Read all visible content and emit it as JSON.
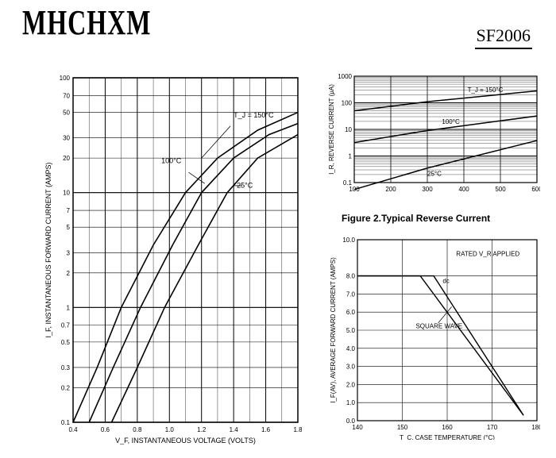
{
  "header": {
    "logo": "MHCHXM",
    "part": "SF2006"
  },
  "figure1": {
    "type": "line",
    "xlabel": "V_F, INSTANTANEOUS VOLTAGE (VOLTS)",
    "ylabel": "I_F, INSTANTANEOUS FORWARD CURRENT (AMPS)",
    "xlim": [
      0.4,
      1.8
    ],
    "xticks": [
      0.4,
      0.6,
      0.8,
      1.0,
      1.2,
      1.4,
      1.6,
      1.8
    ],
    "yscale": "log",
    "ylim": [
      0.1,
      100
    ],
    "yticks": [
      0.1,
      0.2,
      0.3,
      0.5,
      0.7,
      1.0,
      2.0,
      3.0,
      5.0,
      7.0,
      10,
      20,
      30,
      50,
      70,
      100
    ],
    "grid_color": "#000000",
    "background_color": "#ffffff",
    "label_fontsize": 9,
    "tick_fontsize": 8,
    "curve_labels": {
      "c150": "T_J = 150°C",
      "c100": "100°C",
      "c25": "25°C"
    },
    "series": {
      "c150": [
        [
          0.4,
          0.1
        ],
        [
          0.55,
          0.3
        ],
        [
          0.7,
          1.0
        ],
        [
          0.9,
          3.5
        ],
        [
          1.1,
          10
        ],
        [
          1.3,
          20
        ],
        [
          1.55,
          35
        ],
        [
          1.8,
          50
        ]
      ],
      "c100": [
        [
          0.5,
          0.1
        ],
        [
          0.65,
          0.3
        ],
        [
          0.82,
          1.0
        ],
        [
          1.02,
          3.5
        ],
        [
          1.2,
          10
        ],
        [
          1.4,
          20
        ],
        [
          1.62,
          32
        ],
        [
          1.8,
          40
        ]
      ],
      "c25": [
        [
          0.64,
          0.1
        ],
        [
          0.8,
          0.3
        ],
        [
          0.97,
          1.0
        ],
        [
          1.18,
          3.5
        ],
        [
          1.36,
          10
        ],
        [
          1.55,
          20
        ],
        [
          1.8,
          32
        ]
      ]
    },
    "line_color": "#000000",
    "line_width": 1.6
  },
  "figure2": {
    "type": "line",
    "caption": "Figure 2.Typical  Reverse  Current",
    "xlabel": "",
    "ylabel": "I_R, REVERSE CURRENT (μA)",
    "xlim": [
      100,
      600
    ],
    "xticks": [
      100,
      200,
      300,
      400,
      500,
      600
    ],
    "yscale": "log",
    "ylim": [
      0.1,
      1000
    ],
    "yticks_major": [
      0.1,
      1.0,
      10,
      100,
      1000
    ],
    "grid_color": "#000000",
    "background_color": "#ffffff",
    "tick_fontsize": 8,
    "label_fontsize": 8,
    "curve_labels": {
      "c150": "T_J = 150°C",
      "c100": "100°C",
      "c25": "25°C"
    },
    "series": {
      "c150": [
        [
          100,
          50
        ],
        [
          300,
          110
        ],
        [
          600,
          280
        ]
      ],
      "c100": [
        [
          100,
          3.2
        ],
        [
          300,
          9
        ],
        [
          600,
          32
        ]
      ],
      "c25": [
        [
          100,
          0.055
        ],
        [
          300,
          0.35
        ],
        [
          600,
          3.8
        ]
      ]
    },
    "line_color": "#000000",
    "line_width": 1.5
  },
  "figure3": {
    "type": "line",
    "xlabel": "T_C, CASE TEMPERATURE (°C)",
    "ylabel": "I_F(AV), AVERAGE FORWARD CURRENT (AMPS)",
    "xlim": [
      140,
      180
    ],
    "xticks": [
      140,
      150,
      160,
      170,
      180
    ],
    "ylim": [
      0,
      10
    ],
    "yticks": [
      0,
      1.0,
      2.0,
      3.0,
      4.0,
      5.0,
      6.0,
      7.0,
      8.0,
      10
    ],
    "grid_color": "#000000",
    "background_color": "#ffffff",
    "tick_fontsize": 8,
    "label_fontsize": 8,
    "annotations": {
      "rated": "RATED V_R APPLIED",
      "dc": "dc",
      "sq": "SQUARE WAVE"
    },
    "series": {
      "dc": [
        [
          140,
          8.0
        ],
        [
          157,
          8.0
        ],
        [
          177,
          0.3
        ]
      ],
      "sq": [
        [
          140,
          8.0
        ],
        [
          154,
          8.0
        ],
        [
          177,
          0.3
        ]
      ]
    },
    "line_color": "#000000",
    "line_width": 1.4
  }
}
